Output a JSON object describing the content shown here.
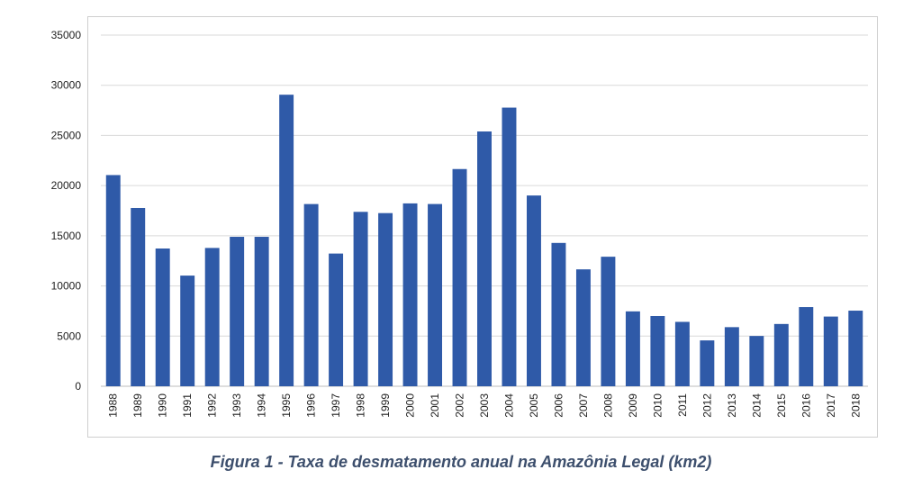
{
  "caption": "Figura 1 - Taxa de desmatamento anual na Amazônia Legal (km2)",
  "chart_data": {
    "type": "bar",
    "title": "",
    "xlabel": "",
    "ylabel": "",
    "ylim": [
      0,
      35000
    ],
    "yticks": [
      "0",
      "5000",
      "10000",
      "15000",
      "20000",
      "25000",
      "30000",
      "35000"
    ],
    "grid": true,
    "legend": "none",
    "bar_color": "#2f5aa8",
    "categories": [
      "1988",
      "1989",
      "1990",
      "1991",
      "1992",
      "1993",
      "1994",
      "1995",
      "1996",
      "1997",
      "1998",
      "1999",
      "2000",
      "2001",
      "2002",
      "2003",
      "2004",
      "2005",
      "2006",
      "2007",
      "2008",
      "2009",
      "2010",
      "2011",
      "2012",
      "2013",
      "2014",
      "2015",
      "2016",
      "2017",
      "2018"
    ],
    "values": [
      21050,
      17770,
      13730,
      11030,
      13786,
      14896,
      14896,
      29059,
      18161,
      13227,
      17383,
      17259,
      18226,
      18165,
      21650,
      25396,
      27772,
      19014,
      14286,
      11651,
      12911,
      7464,
      7000,
      6418,
      4571,
      5891,
      5012,
      6207,
      7893,
      6947,
      7536
    ]
  }
}
